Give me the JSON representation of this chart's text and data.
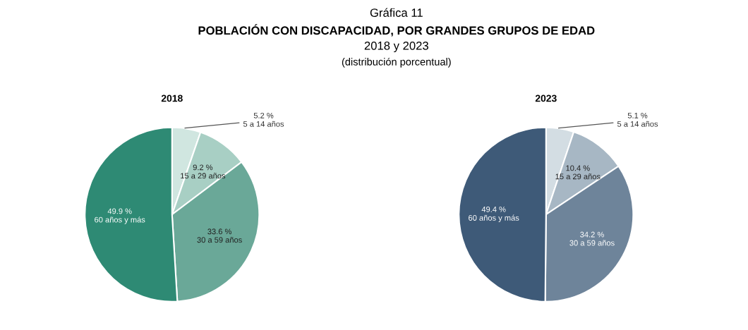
{
  "chart_data": [
    {
      "type": "pie",
      "title": "2018",
      "annotations": [
        "Gráfica 11",
        "POBLACIÓN CON DISCAPACIDAD, POR GRANDES GRUPOS DE EDAD",
        "2018 y 2023",
        "(distribución porcentual)"
      ],
      "categories": [
        "5 a 14 años",
        "15 a 29 años",
        "30 a 59 años",
        "60 años y más"
      ],
      "values": [
        5.2,
        9.2,
        33.6,
        49.9
      ],
      "value_labels": [
        "5.2 %",
        "9.2 %",
        "33.6 %",
        "49.9 %"
      ],
      "colors": [
        "#d0e6e0",
        "#a8cfc4",
        "#6aa898",
        "#2e8a74"
      ]
    },
    {
      "type": "pie",
      "title": "2023",
      "categories": [
        "5 a 14 años",
        "15 a 29 años",
        "30 a 59 años",
        "60 años y más"
      ],
      "values": [
        5.1,
        10.4,
        34.2,
        49.4
      ],
      "value_labels": [
        "5.1 %",
        "10.4 %",
        "34.2 %",
        "49.4 %"
      ],
      "colors": [
        "#d3dde3",
        "#a7b7c4",
        "#6e849a",
        "#3e5a78"
      ]
    }
  ]
}
